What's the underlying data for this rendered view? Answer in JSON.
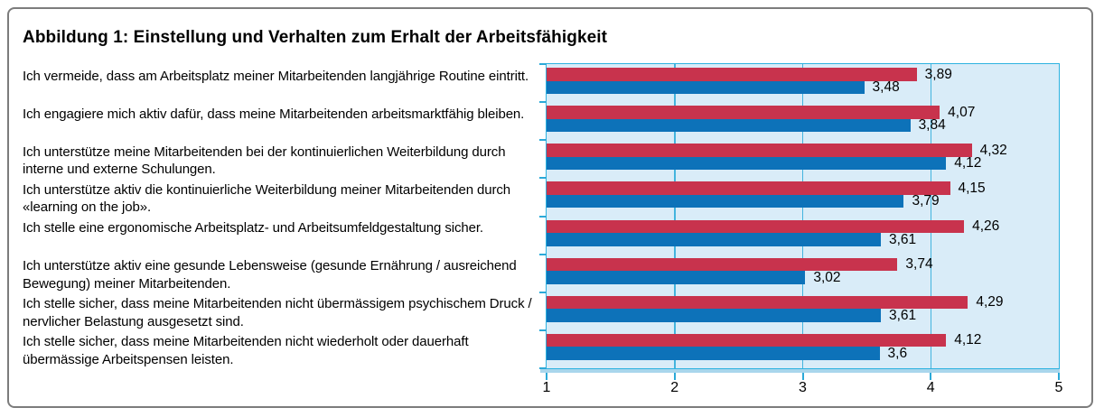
{
  "chart_data": {
    "type": "bar",
    "orientation": "horizontal",
    "title": "Abbildung 1: Einstellung und Verhalten zum Erhalt der Arbeitsfähigkeit",
    "categories": [
      "Ich vermeide, dass am Arbeitsplatz meiner Mitarbeitenden langjährige Routine eintritt.",
      "Ich engagiere mich aktiv dafür, dass meine Mitarbeitenden arbeitsmarktfähig bleiben.",
      "Ich unterstütze meine Mitarbeitenden bei der kontinuierlichen Weiterbildung durch interne und externe Schulungen.",
      "Ich unterstütze aktiv die kontinuierliche Weiterbildung meiner Mitarbeitenden durch «learning on the job».",
      "Ich stelle eine ergonomische Arbeitsplatz- und Arbeitsumfeldgestaltung sicher.",
      "Ich unterstütze aktiv eine gesunde Lebensweise (gesunde Ernährung / ausreichend Bewegung) meiner Mitarbeitenden.",
      "Ich stelle sicher, dass meine Mitarbeitenden nicht übermässigem psychischem Druck / nervlicher Belastung ausgesetzt sind.",
      "Ich stelle sicher, dass meine Mitarbeitenden nicht wiederholt oder dauerhaft übermässige Arbeitspensen leisten."
    ],
    "series": [
      {
        "name": "red",
        "color": "#c8334d",
        "values": [
          3.89,
          4.07,
          4.32,
          4.15,
          4.26,
          3.74,
          4.29,
          4.12
        ],
        "labels": [
          "3,89",
          "4,07",
          "4,32",
          "4,15",
          "4,26",
          "3,74",
          "4,29",
          "4,12"
        ]
      },
      {
        "name": "blue",
        "color": "#0d72b9",
        "values": [
          3.48,
          3.84,
          4.12,
          3.79,
          3.61,
          3.02,
          3.61,
          3.6
        ],
        "labels": [
          "3,48",
          "3,84",
          "4,12",
          "3,79",
          "3,61",
          "3,02",
          "3,61",
          "3,6"
        ]
      }
    ],
    "xlim": [
      1,
      5
    ],
    "x_ticks": [
      "1",
      "2",
      "3",
      "4",
      "5"
    ],
    "grid": true,
    "colors": {
      "plot_background": "#d9ecf8",
      "grid_line": "#43b4de",
      "plot_border": "#2db2e0",
      "axis_band": "#a9d6ec",
      "tick": "#2ba9d8",
      "text": "#000000",
      "figure_border": "#7c7c7c"
    }
  }
}
